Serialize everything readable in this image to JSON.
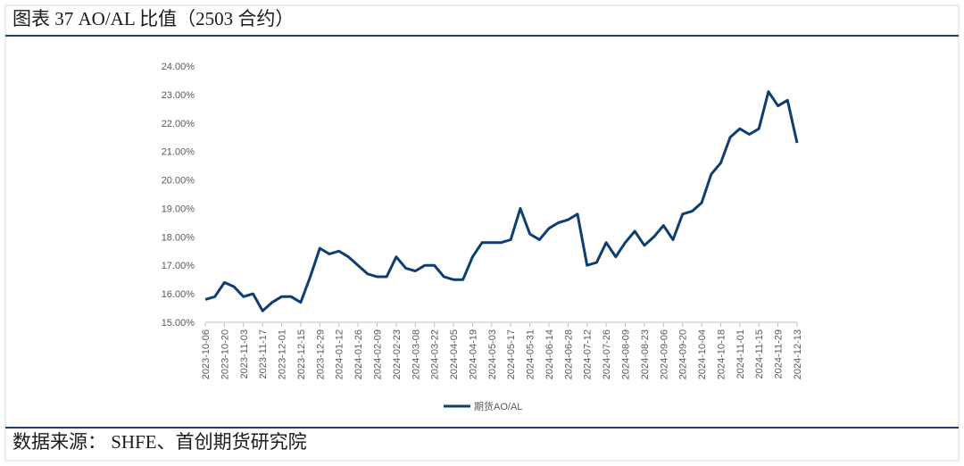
{
  "header": {
    "title": "图表 37 AO/AL 比值（2503 合约）"
  },
  "chart_data": {
    "type": "line",
    "x": [
      "2023-10-06",
      "2023-10-13",
      "2023-10-20",
      "2023-10-27",
      "2023-11-03",
      "2023-11-10",
      "2023-11-17",
      "2023-11-24",
      "2023-12-01",
      "2023-12-08",
      "2023-12-15",
      "2023-12-22",
      "2023-12-29",
      "2024-01-05",
      "2024-01-12",
      "2024-01-19",
      "2024-01-26",
      "2024-02-02",
      "2024-02-09",
      "2024-02-16",
      "2024-02-23",
      "2024-03-01",
      "2024-03-08",
      "2024-03-15",
      "2024-03-22",
      "2024-03-29",
      "2024-04-05",
      "2024-04-12",
      "2024-04-19",
      "2024-04-26",
      "2024-05-03",
      "2024-05-10",
      "2024-05-17",
      "2024-05-24",
      "2024-05-31",
      "2024-06-07",
      "2024-06-14",
      "2024-06-21",
      "2024-06-28",
      "2024-07-05",
      "2024-07-12",
      "2024-07-19",
      "2024-07-26",
      "2024-08-02",
      "2024-08-09",
      "2024-08-16",
      "2024-08-23",
      "2024-08-30",
      "2024-09-06",
      "2024-09-13",
      "2024-09-20",
      "2024-09-27",
      "2024-10-04",
      "2024-10-11",
      "2024-10-18",
      "2024-10-25",
      "2024-11-01",
      "2024-11-08",
      "2024-11-15",
      "2024-11-22",
      "2024-11-29",
      "2024-12-06",
      "2024-12-13"
    ],
    "series": [
      {
        "name": "期货AO/AL",
        "color": "#0e3d70",
        "values": [
          15.8,
          15.9,
          16.4,
          16.25,
          15.9,
          16.0,
          15.4,
          15.7,
          15.9,
          15.9,
          15.7,
          16.6,
          17.6,
          17.4,
          17.5,
          17.3,
          17.0,
          16.7,
          16.6,
          16.6,
          17.3,
          16.9,
          16.8,
          17.0,
          17.0,
          16.6,
          16.5,
          16.5,
          17.3,
          17.8,
          17.8,
          17.8,
          17.9,
          19.0,
          18.1,
          17.9,
          18.3,
          18.5,
          18.6,
          18.8,
          17.0,
          17.1,
          17.8,
          17.3,
          17.8,
          18.2,
          17.7,
          18.0,
          18.4,
          17.9,
          18.8,
          18.9,
          19.2,
          20.2,
          20.6,
          21.5,
          21.8,
          21.6,
          21.8,
          23.1,
          22.6,
          22.8,
          21.3
        ]
      }
    ],
    "xlim": [
      "2023-10-06",
      "2024-12-13"
    ],
    "xticks": [
      "2023-10-06",
      "2023-10-20",
      "2023-11-03",
      "2023-11-17",
      "2023-12-01",
      "2023-12-15",
      "2023-12-29",
      "2024-01-12",
      "2024-01-26",
      "2024-02-09",
      "2024-02-23",
      "2024-03-08",
      "2024-03-22",
      "2024-04-05",
      "2024-04-19",
      "2024-05-03",
      "2024-05-17",
      "2024-05-31",
      "2024-06-14",
      "2024-06-28",
      "2024-07-12",
      "2024-07-26",
      "2024-08-09",
      "2024-08-23",
      "2024-09-06",
      "2024-09-20",
      "2024-10-04",
      "2024-10-18",
      "2024-11-01",
      "2024-11-15",
      "2024-11-29",
      "2024-12-13"
    ],
    "ylim": [
      15,
      24
    ],
    "yticks": [
      {
        "value": 15,
        "label": "15.00%"
      },
      {
        "value": 16,
        "label": "16.00%"
      },
      {
        "value": 17,
        "label": "17.00%"
      },
      {
        "value": 18,
        "label": "18.00%"
      },
      {
        "value": 19,
        "label": "19.00%"
      },
      {
        "value": 20,
        "label": "20.00%"
      },
      {
        "value": 21,
        "label": "21.00%"
      },
      {
        "value": 22,
        "label": "22.00%"
      },
      {
        "value": 23,
        "label": "23.00%"
      },
      {
        "value": 24,
        "label": "24.00%"
      }
    ],
    "grid": false,
    "legend": "bottom"
  },
  "footer": {
    "source": "数据来源： SHFE、首创期货研究院"
  }
}
